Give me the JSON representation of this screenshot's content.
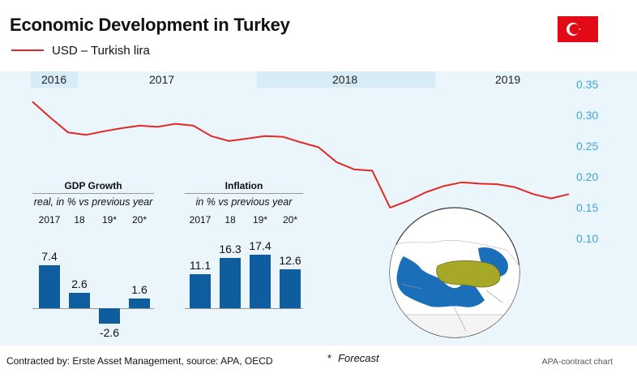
{
  "header": {
    "title": "Economic Development in Turkey",
    "legend_label": "USD – Turkish lira",
    "flag_icon": "turkey-flag"
  },
  "colors": {
    "line": "#e32a22",
    "plot_bg": "#eaf5fc",
    "year_band": "#d8ecf8",
    "axis_text": "#3fa6dc",
    "bar": "#0f5c9e",
    "turkey_map": "#a8a828"
  },
  "chart_data": [
    {
      "type": "line",
      "series": [
        {
          "name": "USD – Turkish lira",
          "x": [
            "2016-12",
            "2017-01",
            "2017-02",
            "2017-03",
            "2017-04",
            "2017-05",
            "2017-06",
            "2017-07",
            "2017-08",
            "2017-09",
            "2017-10",
            "2017-11",
            "2017-12",
            "2018-01",
            "2018-02",
            "2018-03",
            "2018-04",
            "2018-05",
            "2018-06",
            "2018-07",
            "2018-08",
            "2018-09",
            "2018-10",
            "2018-11",
            "2018-12",
            "2019-01",
            "2019-02",
            "2019-03",
            "2019-04",
            "2019-05",
            "2019-06"
          ],
          "values": [
            0.322,
            0.296,
            0.272,
            0.268,
            0.274,
            0.279,
            0.283,
            0.281,
            0.286,
            0.283,
            0.266,
            0.258,
            0.262,
            0.266,
            0.265,
            0.256,
            0.248,
            0.224,
            0.212,
            0.21,
            0.15,
            0.161,
            0.175,
            0.185,
            0.191,
            0.189,
            0.188,
            0.183,
            0.172,
            0.165,
            0.172
          ]
        }
      ],
      "years": [
        "2016",
        "2017",
        "2018",
        "2019"
      ],
      "y_ticks": [
        "0.35",
        "0.30",
        "0.25",
        "0.20",
        "0.15",
        "0.10"
      ],
      "ylim": [
        0.1,
        0.35
      ]
    },
    {
      "type": "bar",
      "title": "GDP Growth",
      "subtitle": "real, in % vs previous year",
      "categories": [
        "2017",
        "18",
        "19*",
        "20*"
      ],
      "values": [
        7.4,
        2.6,
        -2.6,
        1.6
      ],
      "value_labels": [
        "7.4",
        "2.6",
        "-2.6",
        "1.6"
      ]
    },
    {
      "type": "bar",
      "title": "Inflation",
      "subtitle": "in % vs previous year",
      "categories": [
        "2017",
        "18",
        "19*",
        "20*"
      ],
      "values": [
        11.1,
        16.3,
        17.4,
        12.6
      ],
      "value_labels": [
        "11.1",
        "16.3",
        "17.4",
        "12.6"
      ]
    }
  ],
  "footer": {
    "source": "Contracted by: Erste Asset Management, source: APA, OECD",
    "note_mark": "*",
    "note_text": "Forecast",
    "credit": "APA-contract chart"
  }
}
